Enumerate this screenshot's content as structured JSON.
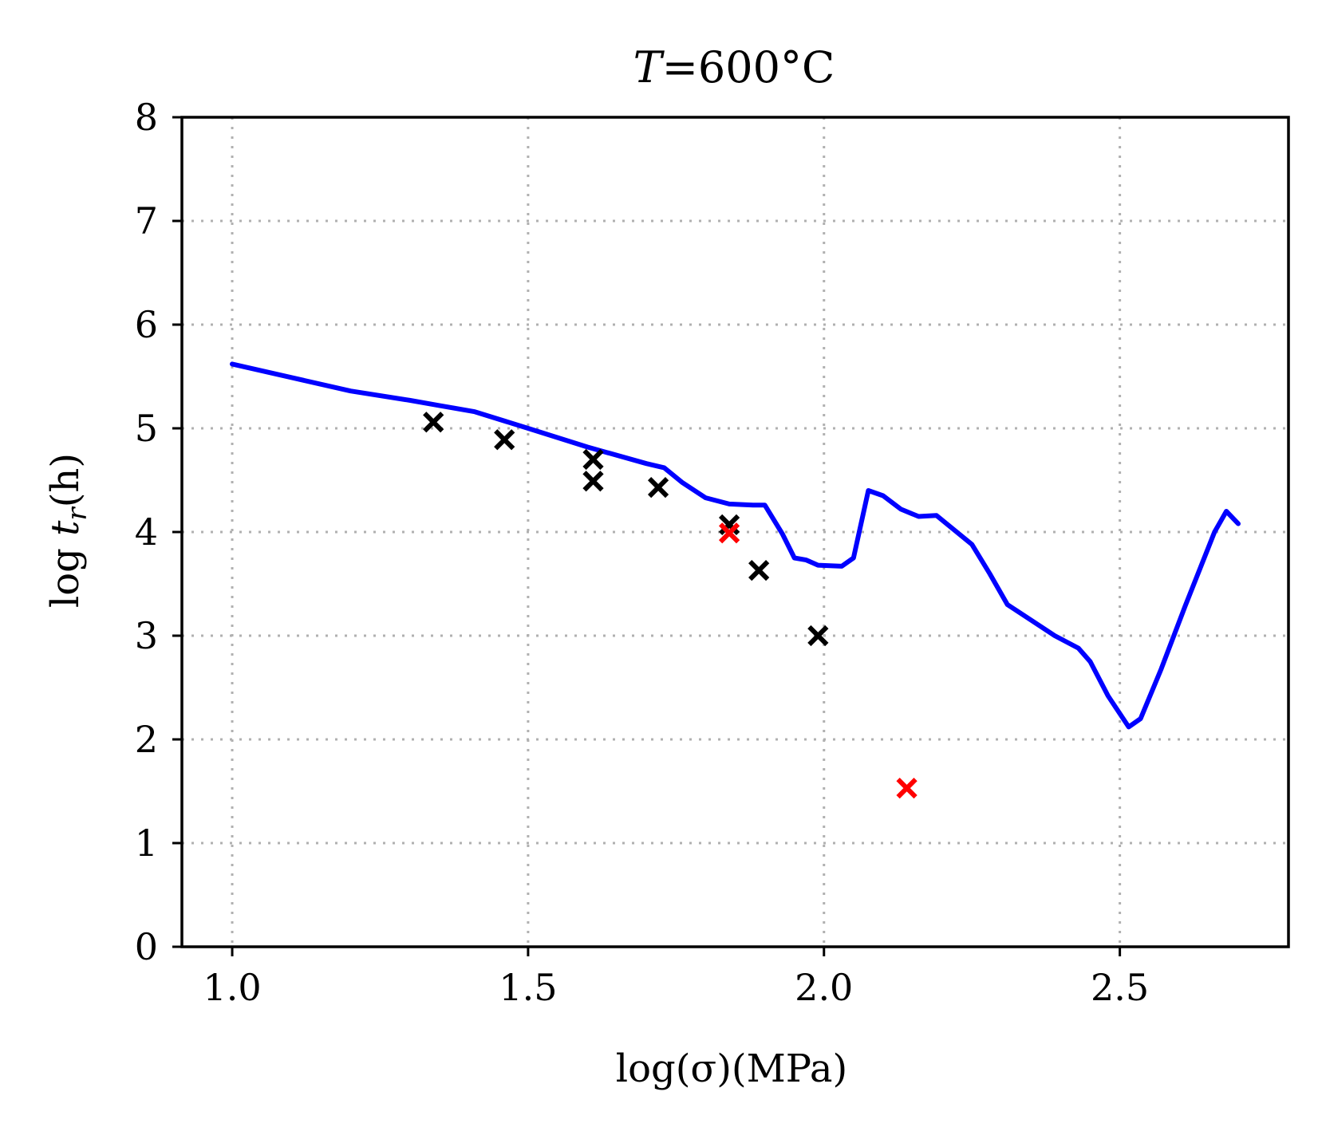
{
  "chart_data": {
    "type": "line",
    "title": "T=600°C",
    "title_parts": {
      "variable": "T",
      "rest": "=600°C"
    },
    "xlabel": "log(σ)(MPa)",
    "ylabel": "log t_r(h)",
    "ylabel_parts": {
      "prefix": "log ",
      "variable": "t",
      "subscript": "r",
      "suffix": "(h)"
    },
    "xlim": [
      0.915,
      2.785
    ],
    "ylim": [
      0,
      8
    ],
    "xticks": [
      1.0,
      1.5,
      2.0,
      2.5
    ],
    "xtick_labels": [
      "1.0",
      "1.5",
      "2.0",
      "2.5"
    ],
    "yticks": [
      0,
      1,
      2,
      3,
      4,
      5,
      6,
      7,
      8
    ],
    "ytick_labels": [
      "0",
      "1",
      "2",
      "3",
      "4",
      "5",
      "6",
      "7",
      "8"
    ],
    "grid": true,
    "series": [
      {
        "name": "model prediction",
        "type": "line",
        "color": "#0000ff",
        "x": [
          1.0,
          1.1,
          1.2,
          1.3,
          1.35,
          1.41,
          1.5,
          1.6,
          1.7,
          1.73,
          1.76,
          1.8,
          1.84,
          1.88,
          1.9,
          1.93,
          1.95,
          1.97,
          1.99,
          2.03,
          2.05,
          2.075,
          2.1,
          2.13,
          2.16,
          2.19,
          2.25,
          2.28,
          2.31,
          2.35,
          2.39,
          2.43,
          2.45,
          2.48,
          2.515,
          2.535,
          2.57,
          2.61,
          2.66,
          2.68,
          2.7
        ],
        "y": [
          5.62,
          5.49,
          5.36,
          5.27,
          5.22,
          5.16,
          5.0,
          4.82,
          4.66,
          4.62,
          4.48,
          4.33,
          4.27,
          4.26,
          4.26,
          3.98,
          3.75,
          3.73,
          3.68,
          3.67,
          3.75,
          4.4,
          4.35,
          4.22,
          4.15,
          4.16,
          3.88,
          3.6,
          3.3,
          3.15,
          3.0,
          2.88,
          2.75,
          2.42,
          2.12,
          2.2,
          2.68,
          3.28,
          4.0,
          4.2,
          4.08
        ]
      },
      {
        "name": "experimental data",
        "type": "scatter",
        "color": "#000000",
        "marker": "x",
        "x": [
          1.34,
          1.46,
          1.61,
          1.61,
          1.72,
          1.84,
          1.89,
          1.99
        ],
        "y": [
          5.06,
          4.89,
          4.7,
          4.49,
          4.43,
          4.07,
          3.63,
          3.0
        ]
      },
      {
        "name": "experimental data (red)",
        "type": "scatter",
        "color": "#ff0000",
        "marker": "x",
        "x": [
          1.84,
          2.14
        ],
        "y": [
          3.99,
          1.53
        ]
      }
    ]
  }
}
